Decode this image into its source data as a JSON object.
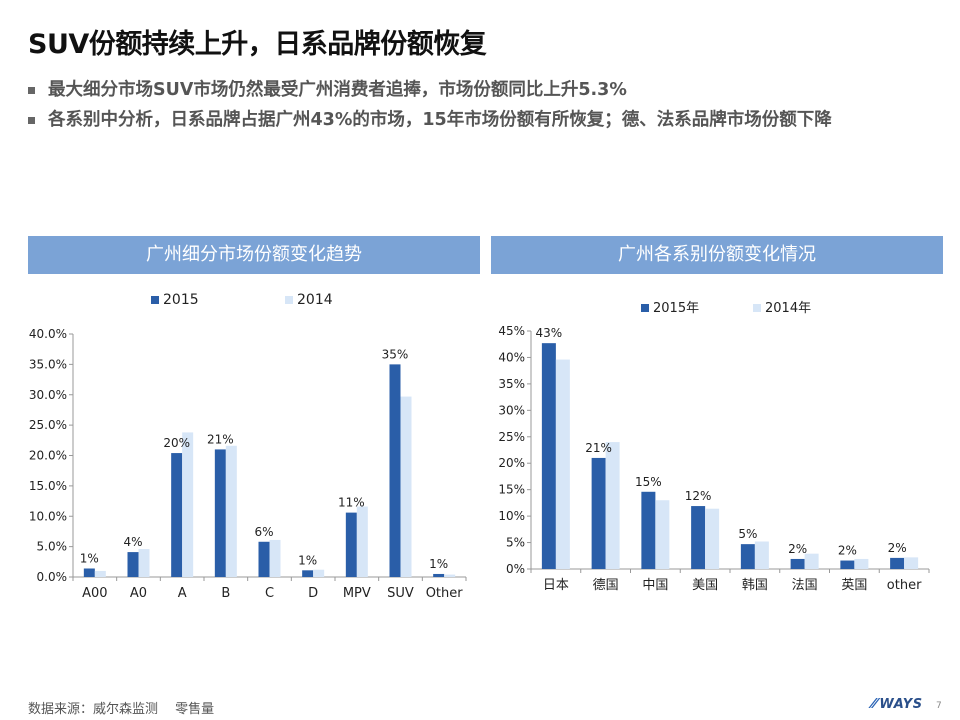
{
  "slide": {
    "title": "SUV份额持续上升，日系品牌份额恢复",
    "bullets": [
      "最大细分市场SUV市场仍然最受广州消费者追捧，市场份额同比上升5.3%",
      "各系别中分析，日系品牌占据广州43%的市场，15年市场份额有所恢复；德、法系品牌市场份额下降"
    ],
    "source": "数据来源：威尔森监测　 零售量",
    "logo_text": "WAYS",
    "page_number": "7"
  },
  "colors": {
    "header_bg": "#7ba3d6",
    "series_dark": "#2a5ea8",
    "series_light": "#d7e6f7"
  },
  "chart_data": [
    {
      "type": "bar",
      "title": "广州细分市场份额变化趋势",
      "categories": [
        "A00",
        "A0",
        "A",
        "B",
        "C",
        "D",
        "MPV",
        "SUV",
        "Other"
      ],
      "series": [
        {
          "name": "2015",
          "values": [
            1.4,
            4.1,
            20.4,
            21.0,
            5.8,
            1.1,
            10.6,
            35.0,
            0.5
          ]
        },
        {
          "name": "2014",
          "values": [
            1.0,
            4.6,
            23.8,
            21.6,
            6.1,
            1.2,
            11.6,
            29.7,
            0.4
          ]
        }
      ],
      "data_labels": [
        "1%",
        "4%",
        "20%",
        "21%",
        "6%",
        "1%",
        "11%",
        "35%",
        "1%"
      ],
      "yticks": [
        "0.0%",
        "5.0%",
        "10.0%",
        "15.0%",
        "20.0%",
        "25.0%",
        "30.0%",
        "35.0%",
        "40.0%"
      ],
      "ylim": [
        0,
        40
      ],
      "legend_position": "top",
      "grid": false
    },
    {
      "type": "bar",
      "title": "广州各系别份额变化情况",
      "categories": [
        "日本",
        "德国",
        "中国",
        "美国",
        "韩国",
        "法国",
        "英国",
        "other"
      ],
      "series": [
        {
          "name": "2015年",
          "values": [
            42.7,
            21.0,
            14.6,
            11.9,
            4.7,
            1.9,
            1.6,
            2.1
          ]
        },
        {
          "name": "2014年",
          "values": [
            39.6,
            24.0,
            13.0,
            11.4,
            5.2,
            2.9,
            1.9,
            2.2
          ]
        }
      ],
      "data_labels": [
        "43%",
        "21%",
        "15%",
        "12%",
        "5%",
        "2%",
        "2%",
        "2%"
      ],
      "yticks": [
        "0%",
        "5%",
        "10%",
        "15%",
        "20%",
        "25%",
        "30%",
        "35%",
        "40%",
        "45%"
      ],
      "ylim": [
        0,
        45
      ],
      "legend_position": "top",
      "grid": false
    }
  ]
}
